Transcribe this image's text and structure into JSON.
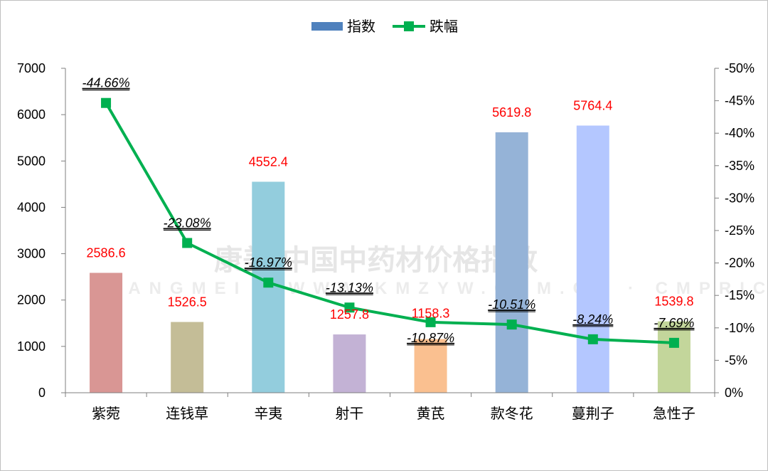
{
  "chart_data": {
    "type": "bar",
    "categories": [
      "紫菀",
      "连钱草",
      "辛夷",
      "射干",
      "黄芪",
      "款冬花",
      "蔓荆子",
      "急性子"
    ],
    "series": [
      {
        "name": "指数",
        "type": "bar",
        "axis": "left",
        "values": [
          2586.6,
          1526.5,
          4552.4,
          1257.8,
          1158.3,
          5619.8,
          5764.4,
          1539.8
        ],
        "labels": [
          "2586.6",
          "1526.5",
          "4552.4",
          "1257.8",
          "1158.3",
          "5619.8",
          "5764.4",
          "1539.8"
        ],
        "colors": [
          "#d99694",
          "#c4bd97",
          "#93cddd",
          "#c3b2d5",
          "#fac090",
          "#95b3d7",
          "#b4c7ff",
          "#c3d69b"
        ]
      },
      {
        "name": "跌幅",
        "type": "line",
        "axis": "right",
        "values": [
          -44.66,
          -23.08,
          -16.97,
          -13.13,
          -10.87,
          -10.51,
          -8.24,
          -7.69
        ],
        "labels": [
          "-44.66%",
          "-23.08%",
          "-16.97%",
          "-13.13%",
          "-10.87%",
          "-10.51%",
          "-8.24%",
          "-7.69%"
        ],
        "color": "#00b050"
      }
    ],
    "y_left": {
      "min": 0,
      "max": 7000,
      "ticks": [
        "0",
        "1000",
        "2000",
        "3000",
        "4000",
        "5000",
        "6000",
        "7000"
      ]
    },
    "y_right": {
      "min": 0,
      "max": -50,
      "ticks": [
        "0%",
        "-5%",
        "-10%",
        "-15%",
        "-20%",
        "-25%",
        "-30%",
        "-35%",
        "-40%",
        "-45%",
        "-50%"
      ]
    },
    "legend": {
      "position": "top",
      "bar_color": "#4f81bd",
      "line_color": "#00b050"
    },
    "grid": false
  },
  "watermark": {
    "text_cn": "康美·中国中药材价格指数",
    "text_en": "KANGMEI · WWW.KMZYW.COM.CN · CMPRICE.COM"
  }
}
